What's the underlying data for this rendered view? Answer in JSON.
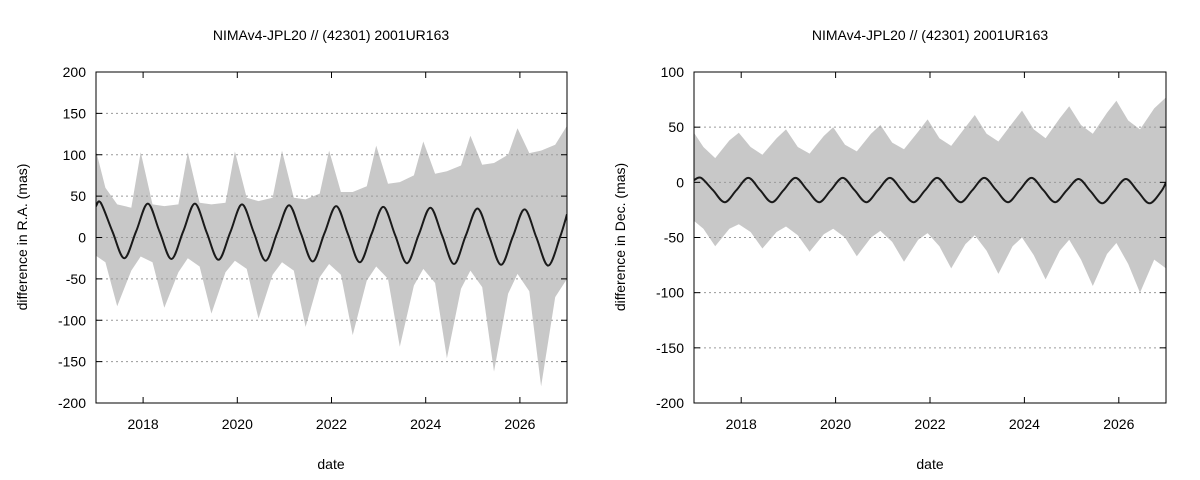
{
  "chart_data": [
    {
      "type": "area",
      "title": "NIMAv4-JPL20 // (42301) 2001UR163",
      "xlabel": "date",
      "ylabel": "difference in R.A. (mas)",
      "xlim": [
        "2017-01-01",
        "2027-01-01"
      ],
      "ylim": [
        -200,
        200
      ],
      "x_ticks": [
        "2018",
        "2020",
        "2022",
        "2024",
        "2026"
      ],
      "y_ticks": [
        "-200",
        "-150",
        "-100",
        "-50",
        "0",
        "50",
        "100",
        "150",
        "200"
      ],
      "grid": "horizontal dotted",
      "colors": {
        "band": "#c8c8c8",
        "line": "#1a1a1a"
      },
      "series": [
        {
          "kind": "band",
          "x": [
            "2017.0",
            "2017.2",
            "2017.45",
            "2017.75",
            "2017.95",
            "2018.2",
            "2018.45",
            "2018.75",
            "2018.95",
            "2019.2",
            "2019.45",
            "2019.75",
            "2019.95",
            "2020.2",
            "2020.45",
            "2020.75",
            "2020.95",
            "2021.2",
            "2021.45",
            "2021.75",
            "2021.95",
            "2022.2",
            "2022.45",
            "2022.75",
            "2022.95",
            "2023.2",
            "2023.45",
            "2023.75",
            "2023.95",
            "2024.2",
            "2024.45",
            "2024.75",
            "2024.95",
            "2025.2",
            "2025.45",
            "2025.75",
            "2025.95",
            "2026.2",
            "2026.45",
            "2026.75",
            "2027.0"
          ],
          "upper": [
            105,
            60,
            40,
            36,
            103,
            40,
            38,
            40,
            103,
            42,
            40,
            42,
            104,
            48,
            44,
            48,
            105,
            48,
            46,
            53,
            105,
            55,
            55,
            62,
            111,
            65,
            67,
            75,
            116,
            77,
            80,
            87,
            123,
            88,
            90,
            100,
            132,
            102,
            105,
            112,
            135
          ],
          "lower": [
            -22,
            -30,
            -83,
            -40,
            -23,
            -30,
            -85,
            -42,
            -25,
            -35,
            -92,
            -42,
            -28,
            -38,
            -98,
            -45,
            -30,
            -40,
            -108,
            -48,
            -32,
            -45,
            -118,
            -52,
            -35,
            -50,
            -132,
            -58,
            -38,
            -55,
            -146,
            -62,
            -40,
            -60,
            -162,
            -68,
            -44,
            -65,
            -180,
            -72,
            -50
          ]
        },
        {
          "kind": "line",
          "period_years": 1.0,
          "x": [
            "2017.0",
            "2017.1",
            "2017.35",
            "2017.6",
            "2017.85",
            "2018.1",
            "2018.35",
            "2018.6",
            "2018.85",
            "2019.1",
            "2019.35",
            "2019.6",
            "2019.85",
            "2020.1",
            "2020.35",
            "2020.6",
            "2020.85",
            "2021.1",
            "2021.35",
            "2021.6",
            "2021.85",
            "2022.1",
            "2022.35",
            "2022.6",
            "2022.85",
            "2023.1",
            "2023.35",
            "2023.6",
            "2023.85",
            "2024.1",
            "2024.35",
            "2024.6",
            "2024.85",
            "2025.1",
            "2025.35",
            "2025.6",
            "2025.85",
            "2026.1",
            "2026.35",
            "2026.6",
            "2026.85",
            "2027.0"
          ],
          "y": [
            38,
            42,
            7,
            -25,
            7,
            41,
            7,
            -26,
            7,
            41,
            6,
            -27,
            6,
            40,
            6,
            -28,
            6,
            39,
            5,
            -29,
            5,
            38,
            4,
            -30,
            4,
            37,
            3,
            -31,
            3,
            36,
            2,
            -32,
            2,
            35,
            1,
            -33,
            1,
            34,
            0,
            -34,
            0,
            28
          ]
        }
      ]
    },
    {
      "type": "area",
      "title": "NIMAv4-JPL20 // (42301) 2001UR163",
      "xlabel": "date",
      "ylabel": "difference in Dec. (mas)",
      "xlim": [
        "2017-01-01",
        "2027-01-01"
      ],
      "ylim": [
        -200,
        100
      ],
      "x_ticks": [
        "2018",
        "2020",
        "2022",
        "2024",
        "2026"
      ],
      "y_ticks": [
        "-200",
        "-150",
        "-100",
        "-50",
        "0",
        "50",
        "100"
      ],
      "grid": "horizontal dotted",
      "colors": {
        "band": "#c8c8c8",
        "line": "#1a1a1a"
      },
      "series": [
        {
          "kind": "band",
          "x": [
            "2017.0",
            "2017.2",
            "2017.45",
            "2017.75",
            "2017.95",
            "2018.2",
            "2018.45",
            "2018.75",
            "2018.95",
            "2019.2",
            "2019.45",
            "2019.75",
            "2019.95",
            "2020.2",
            "2020.45",
            "2020.75",
            "2020.95",
            "2021.2",
            "2021.45",
            "2021.75",
            "2021.95",
            "2022.2",
            "2022.45",
            "2022.75",
            "2022.95",
            "2023.2",
            "2023.45",
            "2023.75",
            "2023.95",
            "2024.2",
            "2024.45",
            "2024.75",
            "2024.95",
            "2025.2",
            "2025.45",
            "2025.75",
            "2025.95",
            "2026.2",
            "2026.45",
            "2026.75",
            "2027.0"
          ],
          "upper": [
            45,
            32,
            22,
            38,
            45,
            32,
            25,
            40,
            48,
            32,
            26,
            42,
            50,
            34,
            28,
            44,
            52,
            36,
            30,
            46,
            57,
            40,
            33,
            50,
            61,
            44,
            37,
            54,
            65,
            48,
            40,
            58,
            69,
            52,
            44,
            63,
            74,
            56,
            48,
            67,
            77
          ],
          "lower": [
            -35,
            -42,
            -58,
            -42,
            -38,
            -45,
            -60,
            -45,
            -40,
            -48,
            -63,
            -47,
            -42,
            -50,
            -67,
            -50,
            -44,
            -54,
            -72,
            -52,
            -46,
            -58,
            -78,
            -56,
            -48,
            -62,
            -83,
            -58,
            -50,
            -66,
            -88,
            -62,
            -52,
            -70,
            -94,
            -65,
            -55,
            -74,
            -100,
            -70,
            -78
          ]
        },
        {
          "kind": "line",
          "period_years": 1.0,
          "x": [
            "2017.0",
            "2017.15",
            "2017.4",
            "2017.65",
            "2017.9",
            "2018.15",
            "2018.4",
            "2018.65",
            "2018.9",
            "2019.15",
            "2019.4",
            "2019.65",
            "2019.9",
            "2020.15",
            "2020.4",
            "2020.65",
            "2020.9",
            "2021.15",
            "2021.4",
            "2021.65",
            "2021.9",
            "2022.15",
            "2022.4",
            "2022.65",
            "2022.9",
            "2023.15",
            "2023.4",
            "2023.65",
            "2023.9",
            "2024.15",
            "2024.4",
            "2024.65",
            "2024.9",
            "2025.15",
            "2025.4",
            "2025.65",
            "2025.9",
            "2026.15",
            "2026.4",
            "2026.65",
            "2026.9",
            "2027.0"
          ],
          "y": [
            2,
            4,
            -7,
            -18,
            -7,
            4,
            -7,
            -18,
            -7,
            4,
            -7,
            -18,
            -7,
            4,
            -7,
            -18,
            -7,
            4,
            -7,
            -18,
            -7,
            4,
            -7,
            -18,
            -7,
            4,
            -7,
            -18,
            -7,
            4,
            -7,
            -18,
            -7,
            3,
            -8,
            -19,
            -8,
            3,
            -8,
            -19,
            -8,
            0
          ]
        }
      ]
    }
  ]
}
